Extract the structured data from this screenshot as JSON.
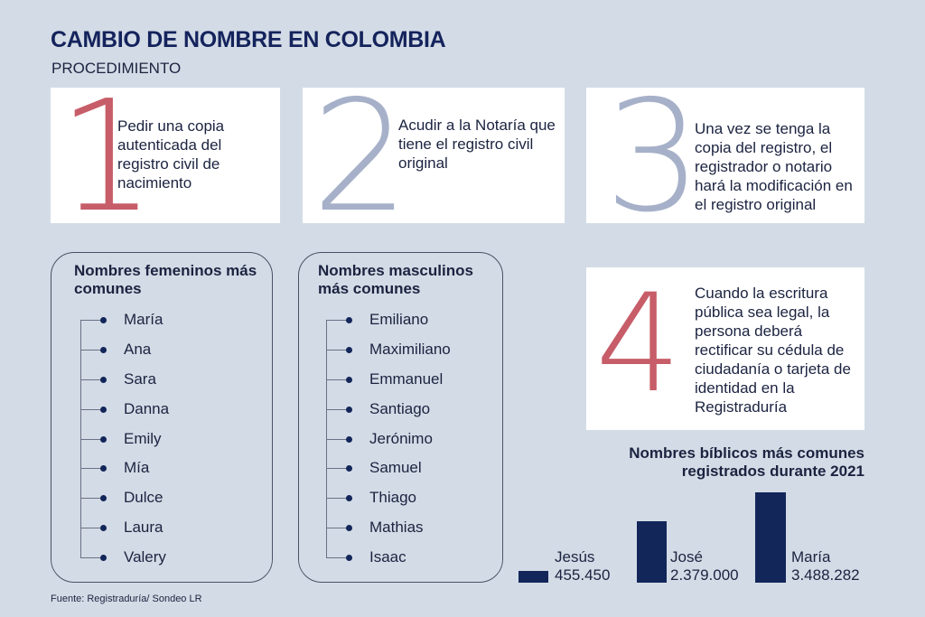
{
  "header": {
    "title": "CAMBIO DE NOMBRE EN COLOMBIA",
    "subtitle": "PROCEDIMIENTO"
  },
  "steps": [
    {
      "number": "1",
      "text": "Pedir una copia autenticada del registro civil de nacimiento",
      "number_color": "#c65d68"
    },
    {
      "number": "2",
      "text": "Acudir a la Notaría que tiene el registro civil original",
      "number_color": "#a6b1c9"
    },
    {
      "number": "3",
      "text": "Una vez se tenga la copia del registro, el registrador o notario hará la modificación en el registro original",
      "number_color": "#a6b1c9"
    },
    {
      "number": "4",
      "text": "Cuando la escritura pública sea legal, la persona deberá rectificar su cédula de ciudadanía o tarjeta de identidad en la Registraduría",
      "number_color": "#c65d68"
    }
  ],
  "female_names": {
    "title": "Nombres femeninos más comunes",
    "items": [
      "María",
      "Ana",
      "Sara",
      "Danna",
      "Emily",
      "Mía",
      "Dulce",
      "Laura",
      "Valery"
    ]
  },
  "male_names": {
    "title": "Nombres masculinos más comunes",
    "items": [
      "Emiliano",
      "Maximiliano",
      "Emmanuel",
      "Santiago",
      "Jerónimo",
      "Samuel",
      "Thiago",
      "Mathias",
      "Isaac"
    ]
  },
  "chart_data": {
    "type": "bar",
    "title": "Nombres bíblicos más comunes registrados durante 2021",
    "categories": [
      "Jesús",
      "José",
      "María"
    ],
    "values": [
      455450,
      2379000,
      3488282
    ],
    "value_labels": [
      "455.450",
      "2.379.000",
      "3.488.282"
    ],
    "bar_color": "#13265a"
  },
  "footer": {
    "source": "Fuente: Registraduría/ Sondeo LR"
  }
}
